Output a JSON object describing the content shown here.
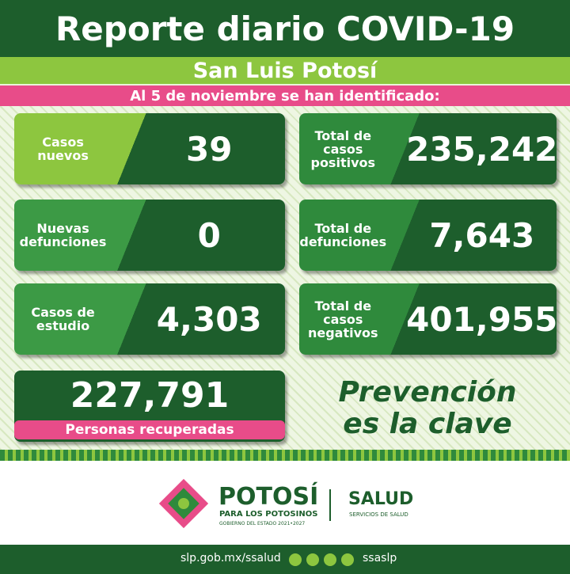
{
  "header": {
    "title": "Reporte diario COVID-19",
    "subtitle": "San Luis Potosí",
    "date_line": "Al 5 de noviembre se han identificado:"
  },
  "cards": [
    {
      "label_lines": [
        "Casos",
        "nuevos"
      ],
      "value": "39"
    },
    {
      "label_lines": [
        "Total de",
        "casos",
        "positivos"
      ],
      "value": "235,242"
    },
    {
      "label_lines": [
        "Nuevas",
        "defunciones"
      ],
      "value": "0"
    },
    {
      "label_lines": [
        "Total de",
        "defunciones"
      ],
      "value": "7,643"
    },
    {
      "label_lines": [
        "Casos de",
        "estudio"
      ],
      "value": "4,303"
    },
    {
      "label_lines": [
        "Total de",
        "casos",
        "negativos"
      ],
      "value": "401,955"
    }
  ],
  "recovered": {
    "value": "227,791",
    "label": "Personas recuperadas"
  },
  "slogan": [
    "Prevención",
    "es la clave"
  ],
  "footer": {
    "brand": "POTOSÍ",
    "brand_sub": "PARA LOS POTOSINOS",
    "brand_gov": "GOBIERNO DEL ESTADO 2021•2027",
    "dept": "SALUD",
    "dept_sub": "SERVICIOS DE SALUD",
    "url": "slp.gob.mx/ssalud",
    "handle": "ssaslp"
  }
}
